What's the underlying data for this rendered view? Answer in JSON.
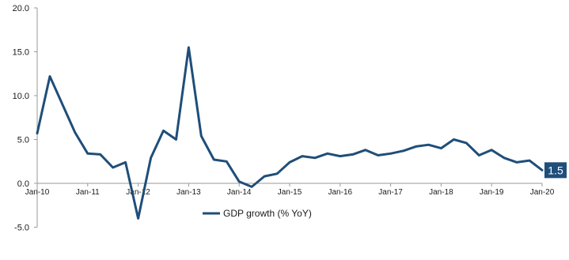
{
  "chart_data": {
    "type": "line",
    "title": "",
    "xlabel": "",
    "ylabel": "",
    "ylim": [
      -5,
      20
    ],
    "yticks": [
      "20.0",
      "15.0",
      "10.0",
      "5.0",
      "0.0",
      "-5.0"
    ],
    "ytick_values": [
      20,
      15,
      10,
      5,
      0,
      -5
    ],
    "xticks": [
      "Jan-10",
      "Jan-11",
      "Jan-12",
      "Jan-13",
      "Jan-14",
      "Jan-15",
      "Jan-16",
      "Jan-17",
      "Jan-18",
      "Jan-19",
      "Jan-20"
    ],
    "xtick_values": [
      "2010-01",
      "2011-01",
      "2012-01",
      "2013-01",
      "2014-01",
      "2015-01",
      "2016-01",
      "2017-01",
      "2018-01",
      "2019-01",
      "2020-01"
    ],
    "grid": false,
    "legend_position": "bottom",
    "x": [
      "2010-01",
      "2010-04",
      "2010-07",
      "2010-10",
      "2011-01",
      "2011-04",
      "2011-07",
      "2011-10",
      "2012-01",
      "2012-04",
      "2012-07",
      "2012-10",
      "2013-01",
      "2013-04",
      "2013-07",
      "2013-10",
      "2014-01",
      "2014-04",
      "2014-07",
      "2014-10",
      "2015-01",
      "2015-04",
      "2015-07",
      "2015-10",
      "2016-01",
      "2016-04",
      "2016-07",
      "2016-10",
      "2017-01",
      "2017-04",
      "2017-07",
      "2017-10",
      "2018-01",
      "2018-04",
      "2018-07",
      "2018-10",
      "2019-01",
      "2019-04",
      "2019-07",
      "2019-10",
      "2020-01"
    ],
    "series": [
      {
        "name": "GDP growth (% YoY)",
        "color": "#1f4e79",
        "values": [
          5.7,
          12.2,
          9.0,
          5.8,
          3.4,
          3.3,
          1.8,
          2.4,
          -4.0,
          2.9,
          6.0,
          5.0,
          15.5,
          5.4,
          2.7,
          2.5,
          0.2,
          -0.4,
          0.8,
          1.1,
          2.4,
          3.1,
          2.9,
          3.4,
          3.1,
          3.3,
          3.8,
          3.2,
          3.4,
          3.7,
          4.2,
          4.4,
          4.0,
          5.0,
          4.6,
          3.2,
          3.8,
          2.9,
          2.4,
          2.6,
          1.5
        ]
      }
    ],
    "callout": {
      "label": "1.5",
      "color": "#1f4e79"
    }
  }
}
